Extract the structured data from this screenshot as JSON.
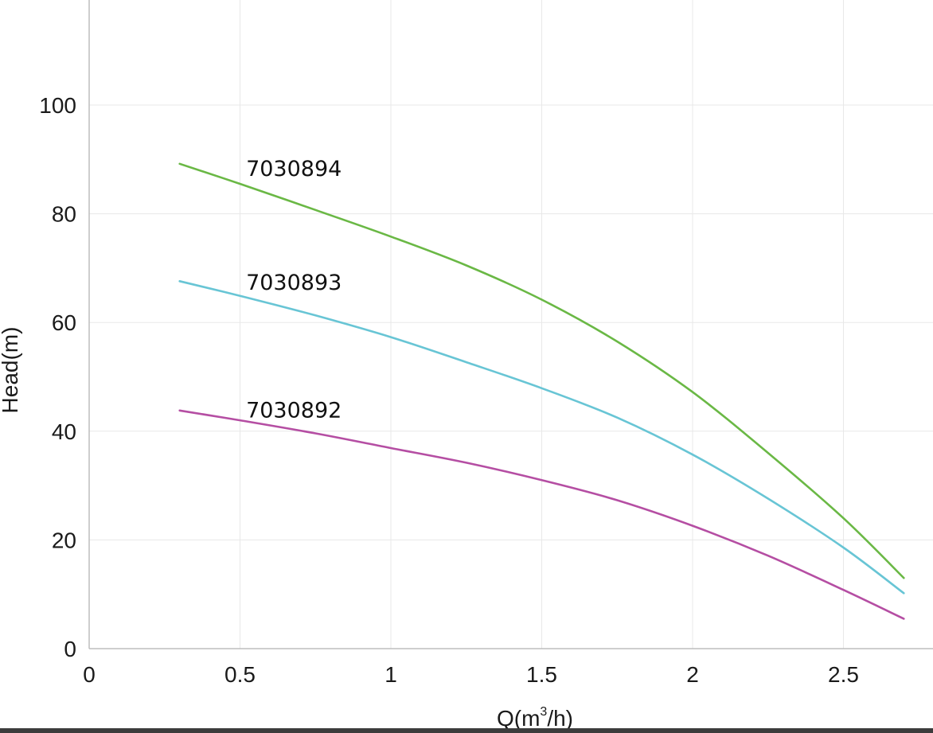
{
  "chart_data": {
    "type": "line",
    "xlabel_main": "Q(m",
    "xlabel_sup": "3",
    "xlabel_tail": "/h)",
    "ylabel": "Head(m)",
    "xlim": [
      0,
      2.75
    ],
    "ylim": [
      0,
      120
    ],
    "x_ticks": [
      {
        "value": 0,
        "label": "0"
      },
      {
        "value": 0.5,
        "label": "0.5"
      },
      {
        "value": 1,
        "label": "1"
      },
      {
        "value": 1.5,
        "label": "1.5"
      },
      {
        "value": 2,
        "label": "2"
      },
      {
        "value": 2.5,
        "label": "2.5"
      }
    ],
    "y_ticks": [
      {
        "value": 0,
        "label": "0"
      },
      {
        "value": 20,
        "label": "20"
      },
      {
        "value": 40,
        "label": "40"
      },
      {
        "value": 60,
        "label": "60"
      },
      {
        "value": 80,
        "label": "80"
      },
      {
        "value": 100,
        "label": "100"
      }
    ],
    "grid": true,
    "series": [
      {
        "name": "7030894",
        "color": "#6ab845",
        "label_at": {
          "x": 0.52,
          "y": 87
        },
        "x": [
          0.3,
          0.5,
          0.75,
          1.0,
          1.25,
          1.5,
          1.75,
          2.0,
          2.25,
          2.5,
          2.7
        ],
        "y": [
          89.2,
          85.5,
          80.7,
          75.8,
          70.5,
          64.2,
          56.5,
          47.2,
          36.0,
          24.0,
          13.0
        ]
      },
      {
        "name": "7030893",
        "color": "#68c5d5",
        "label_at": {
          "x": 0.52,
          "y": 66
        },
        "x": [
          0.3,
          0.5,
          0.75,
          1.0,
          1.25,
          1.5,
          1.75,
          2.0,
          2.25,
          2.5,
          2.7
        ],
        "y": [
          67.6,
          64.9,
          61.3,
          57.3,
          52.7,
          47.9,
          42.5,
          35.7,
          27.6,
          18.6,
          10.2
        ]
      },
      {
        "name": "7030892",
        "color": "#b54ea3",
        "label_at": {
          "x": 0.52,
          "y": 42.5
        },
        "x": [
          0.3,
          0.5,
          0.75,
          1.0,
          1.25,
          1.5,
          1.75,
          2.0,
          2.25,
          2.5,
          2.7
        ],
        "y": [
          43.8,
          42.0,
          39.6,
          36.9,
          34.2,
          31.0,
          27.3,
          22.6,
          17.1,
          10.8,
          5.5
        ]
      }
    ]
  }
}
